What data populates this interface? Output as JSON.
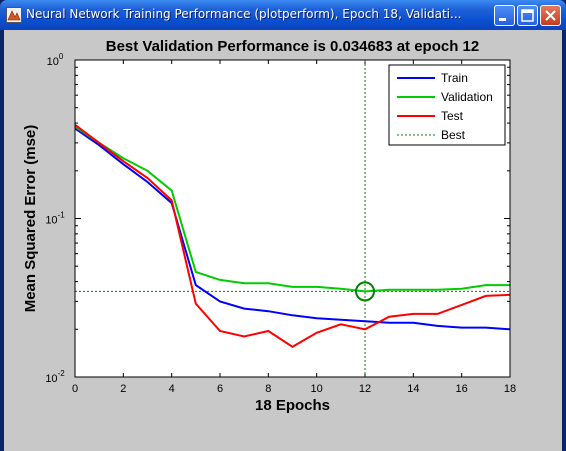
{
  "window": {
    "title": "Neural Network Training Performance (plotperform), Epoch 18, Validati...",
    "icon": "matlab-figure-icon",
    "controls": [
      "minimize-icon",
      "maximize-icon",
      "close-icon"
    ]
  },
  "chart_data": {
    "type": "line",
    "title": "Best Validation Performance is 0.034683 at epoch 12",
    "xlabel": "18 Epochs",
    "ylabel": "Mean Squared Error  (mse)",
    "xlim": [
      0,
      18
    ],
    "ylim": [
      0.01,
      1
    ],
    "yscale": "log",
    "x_ticks": [
      "0",
      "2",
      "4",
      "6",
      "8",
      "10",
      "12",
      "14",
      "16",
      "18"
    ],
    "y_ticks": [
      {
        "base": "10",
        "exp": "0",
        "value": 1
      },
      {
        "base": "10",
        "exp": "-1",
        "value": 0.1
      },
      {
        "base": "10",
        "exp": "-2",
        "value": 0.01
      }
    ],
    "grid": false,
    "legend_position": "top-right",
    "x": [
      0,
      1,
      2,
      3,
      4,
      5,
      6,
      7,
      8,
      9,
      10,
      11,
      12,
      13,
      14,
      15,
      16,
      17,
      18
    ],
    "series": [
      {
        "name": "Train",
        "color": "#0000ff",
        "style": "solid",
        "values": [
          0.37,
          0.29,
          0.22,
          0.17,
          0.125,
          0.038,
          0.03,
          0.027,
          0.026,
          0.0245,
          0.0235,
          0.023,
          0.0225,
          0.022,
          0.022,
          0.021,
          0.0205,
          0.0205,
          0.02
        ]
      },
      {
        "name": "Validation",
        "color": "#00cc00",
        "style": "solid",
        "values": [
          0.38,
          0.3,
          0.24,
          0.2,
          0.15,
          0.046,
          0.041,
          0.039,
          0.039,
          0.037,
          0.037,
          0.036,
          0.034683,
          0.0355,
          0.0355,
          0.0355,
          0.036,
          0.038,
          0.038
        ]
      },
      {
        "name": "Test",
        "color": "#ff0000",
        "style": "solid",
        "values": [
          0.39,
          0.3,
          0.23,
          0.18,
          0.13,
          0.029,
          0.0195,
          0.018,
          0.0195,
          0.0155,
          0.019,
          0.0215,
          0.02,
          0.024,
          0.025,
          0.025,
          0.0285,
          0.0325,
          0.033
        ]
      }
    ],
    "best": {
      "name": "Best",
      "color": "#008000",
      "style": "dotted",
      "epoch": 12,
      "value": 0.034683
    }
  }
}
